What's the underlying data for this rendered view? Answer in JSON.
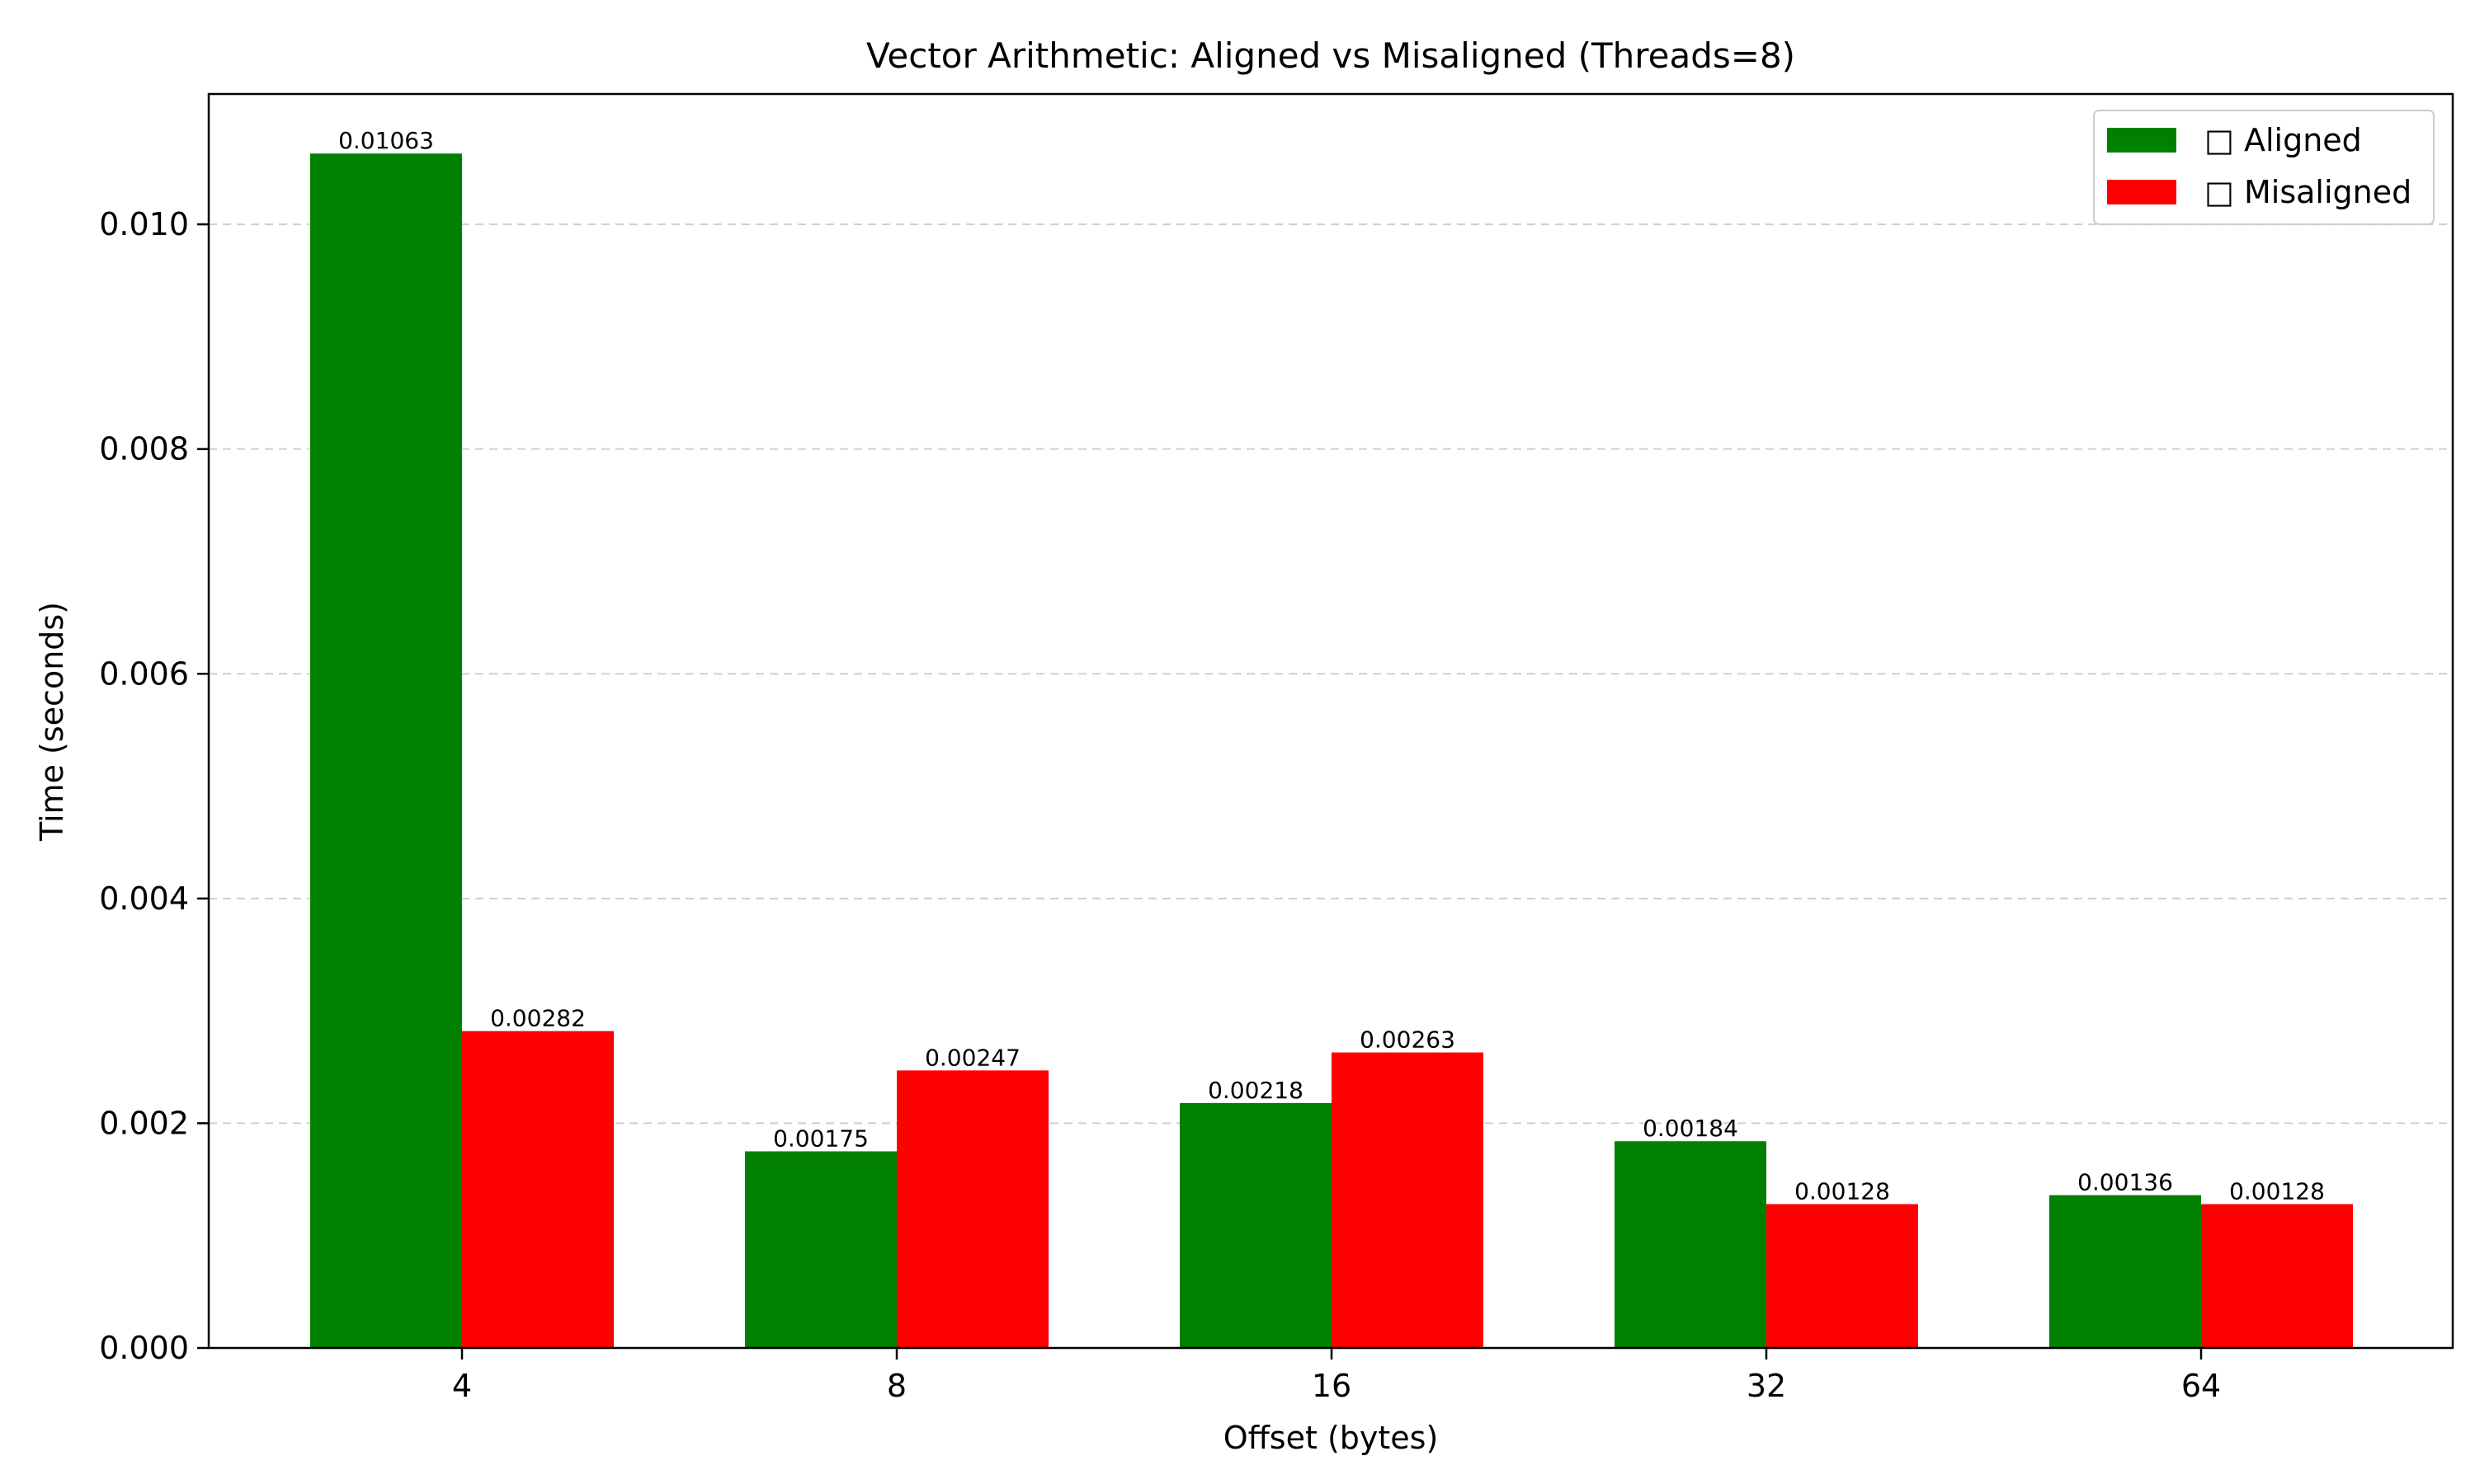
{
  "chart_data": {
    "type": "bar",
    "title": "Vector Arithmetic: Aligned vs Misaligned (Threads=8)",
    "xlabel": "Offset (bytes)",
    "ylabel": "Time (seconds)",
    "categories": [
      "4",
      "8",
      "16",
      "32",
      "64"
    ],
    "series": [
      {
        "name": "Aligned",
        "legend_label": "□ Aligned",
        "color": "#008000",
        "values": [
          0.01063,
          0.00175,
          0.00218,
          0.00184,
          0.00136
        ],
        "labels": [
          "0.01063",
          "0.00175",
          "0.00218",
          "0.00184",
          "0.00136"
        ]
      },
      {
        "name": "Misaligned",
        "legend_label": "□ Misaligned",
        "color": "#ff0000",
        "values": [
          0.00282,
          0.00247,
          0.00263,
          0.00128,
          0.00128
        ],
        "labels": [
          "0.00282",
          "0.00247",
          "0.00263",
          "0.00128",
          "0.00128"
        ]
      }
    ],
    "ylim": [
      0,
      0.01116
    ],
    "yticks": [
      0,
      0.002,
      0.004,
      0.006,
      0.008,
      0.01
    ],
    "ytick_labels": [
      "0.000",
      "0.002",
      "0.004",
      "0.006",
      "0.008",
      "0.010"
    ],
    "grid": "y-dashed",
    "legend_position": "top-right"
  }
}
